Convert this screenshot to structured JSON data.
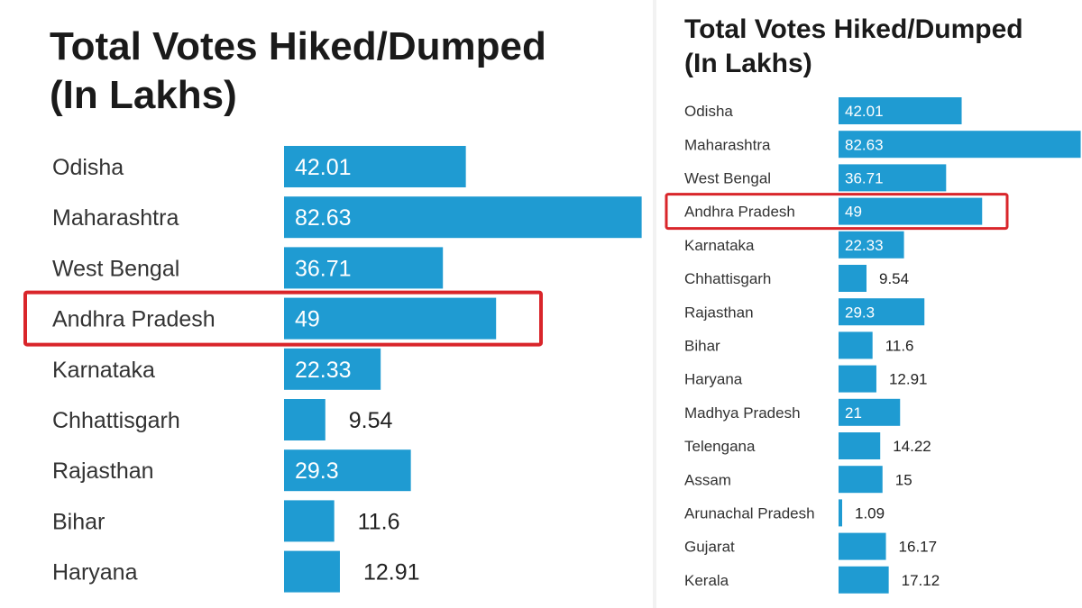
{
  "colors": {
    "bar": "#1f9bd2",
    "highlight": "#d9252a",
    "label_inside": "#ffffff",
    "label_outside": "#222222"
  },
  "left_panel": {
    "title_line1": "Total Votes Hiked/Dumped",
    "title_line2": "(In Lakhs)"
  },
  "right_panel": {
    "title_line1": "Total Votes Hiked/Dumped",
    "title_line2": "(In Lakhs)"
  },
  "chart_data": [
    {
      "type": "bar",
      "orientation": "horizontal",
      "title": "Total Votes Hiked/Dumped (In Lakhs)",
      "categories": [
        "Odisha",
        "Maharashtra",
        "West Bengal",
        "Andhra Pradesh",
        "Karnataka",
        "Chhattisgarh",
        "Rajasthan",
        "Bihar",
        "Haryana"
      ],
      "values": [
        42.01,
        82.63,
        36.71,
        49,
        22.33,
        9.54,
        29.3,
        11.6,
        12.91
      ],
      "highlighted": "Andhra Pradesh",
      "grid": false
    },
    {
      "type": "bar",
      "orientation": "horizontal",
      "title": "Total Votes Hiked/Dumped (In Lakhs)",
      "categories": [
        "Odisha",
        "Maharashtra",
        "West Bengal",
        "Andhra Pradesh",
        "Karnataka",
        "Chhattisgarh",
        "Rajasthan",
        "Bihar",
        "Haryana",
        "Madhya Pradesh",
        "Telengana",
        "Assam",
        "Arunachal Pradesh",
        "Gujarat",
        "Kerala"
      ],
      "values": [
        42.01,
        82.63,
        36.71,
        49,
        22.33,
        9.54,
        29.3,
        11.6,
        12.91,
        21,
        14.22,
        15,
        1.09,
        16.17,
        17.12
      ],
      "highlighted": "Andhra Pradesh",
      "grid": false
    }
  ]
}
